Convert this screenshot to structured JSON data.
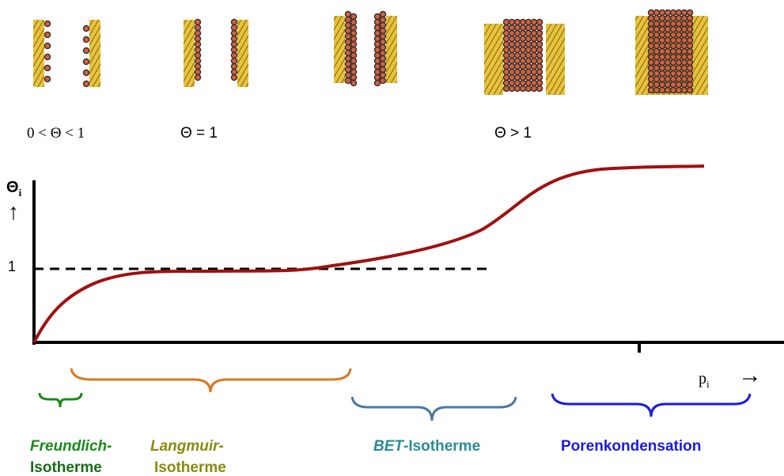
{
  "coverage_labels": [
    "0 < Θ < 1",
    "Θ = 1",
    "Θ > 1"
  ],
  "axes": {
    "y_symbol": "Θ",
    "y_subscript": "i",
    "y_arrow": "↑",
    "y_tick": "1",
    "x_symbol": "p",
    "x_subscript": "i",
    "x_arrow": "→"
  },
  "regions": [
    {
      "name": "Freundlich-",
      "suffix": "Isotherme"
    },
    {
      "name": "Langmuir-",
      "suffix": "Isotherme"
    },
    {
      "name": "BET",
      "suffix": "-Isotherme"
    },
    {
      "name": "Porenkondensation"
    }
  ]
}
